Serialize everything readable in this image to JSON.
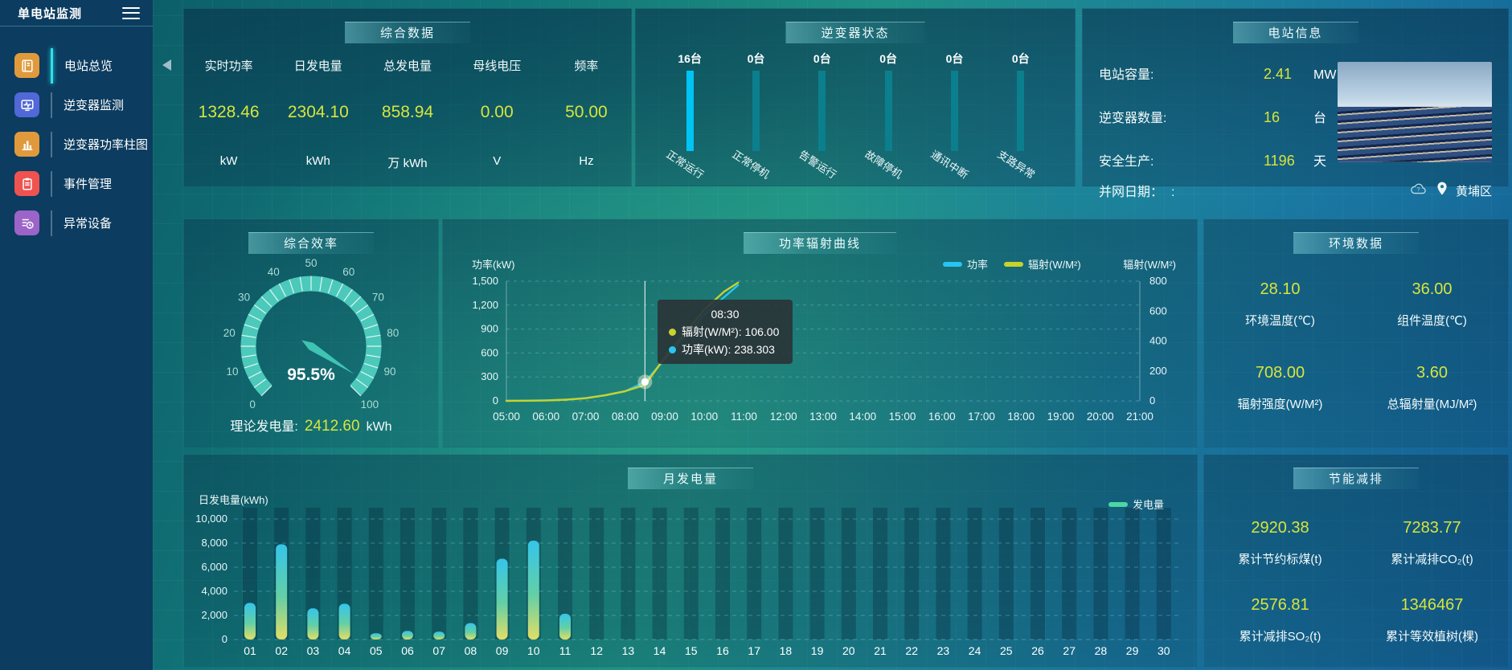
{
  "app": {
    "title": "单电站监测"
  },
  "sidebar": {
    "items": [
      {
        "label": "电站总览",
        "icon": "overview-icon",
        "color": "#e09a3c",
        "active": true
      },
      {
        "label": "逆变器监测",
        "icon": "inverter-monitor-icon",
        "color": "#5168d8",
        "active": false
      },
      {
        "label": "逆变器功率柱图",
        "icon": "inverter-power-bars-icon",
        "color": "#e09a3c",
        "active": false
      },
      {
        "label": "事件管理",
        "icon": "event-management-icon",
        "color": "#ef5350",
        "active": false
      },
      {
        "label": "异常设备",
        "icon": "abnormal-devices-icon",
        "color": "#9c64c8",
        "active": false
      }
    ]
  },
  "summary": {
    "title": "综合数据",
    "metrics": [
      {
        "label": "实时功率",
        "value": "1328.46",
        "unit": "kW"
      },
      {
        "label": "日发电量",
        "value": "2304.10",
        "unit": "kWh"
      },
      {
        "label": "总发电量",
        "value": "858.94",
        "unit": "万 kWh"
      },
      {
        "label": "母线电压",
        "value": "0.00",
        "unit": "V"
      },
      {
        "label": "频率",
        "value": "50.00",
        "unit": "Hz"
      }
    ]
  },
  "inverter_status": {
    "title": "逆变器状态"
  },
  "station_info": {
    "title": "电站信息",
    "rows": [
      {
        "label": "电站容量:",
        "value": "2.41",
        "unit": "MW"
      },
      {
        "label": "逆变器数量:",
        "value": "16",
        "unit": "台"
      },
      {
        "label": "安全生产:",
        "value": "1196",
        "unit": "天"
      },
      {
        "label": "并网日期：",
        "value": ":",
        "unit": ""
      }
    ],
    "location": "黄埔区"
  },
  "efficiency": {
    "title": "综合效率",
    "footer": {
      "label": "理论发电量:",
      "value": "2412.60",
      "unit": "kWh"
    }
  },
  "power_radiation": {
    "title": "功率辐射曲线"
  },
  "environment": {
    "title": "环境数据",
    "metrics": [
      {
        "value": "28.10",
        "label": "环境温度(℃)"
      },
      {
        "value": "36.00",
        "label": "组件温度(℃)"
      },
      {
        "value": "708.00",
        "label": "辐射强度(W/M²)"
      },
      {
        "value": "3.60",
        "label": "总辐射量(MJ/M²)"
      }
    ]
  },
  "monthly": {
    "title": "月发电量"
  },
  "saving": {
    "title": "节能减排",
    "metrics": [
      {
        "value": "2920.38",
        "label": "累计节约标煤(t)"
      },
      {
        "value": "7283.77",
        "label": "累计减排CO₂(t)"
      },
      {
        "value": "2576.81",
        "label": "累计减排SO₂(t)"
      },
      {
        "value": "1346467",
        "label": "累计等效植树(棵)"
      }
    ]
  },
  "colors": {
    "value_accent": "#d7e53c",
    "power_line": "#29c5f2",
    "radiation_line": "#c8d22c",
    "gauge_arc": "#4cc9ba",
    "inverter_active": "#00c4f4",
    "inverter_inactive": "#0b7f8d",
    "generation_legend": "#4cd6a2"
  },
  "chart_data": [
    {
      "id": "power-radiation",
      "type": "line",
      "title": "功率辐射曲线",
      "x_range": [
        5,
        21
      ],
      "x_ticks": [
        "05:00",
        "06:00",
        "07:00",
        "08:00",
        "09:00",
        "10:00",
        "11:00",
        "12:00",
        "13:00",
        "14:00",
        "15:00",
        "16:00",
        "17:00",
        "18:00",
        "19:00",
        "20:00",
        "21:00"
      ],
      "left_axis": {
        "label": "功率(kW)",
        "ticks": [
          0,
          300,
          600,
          900,
          1200,
          1500
        ],
        "max": 1500
      },
      "right_axis": {
        "label": "辐射(W/M²)",
        "ticks": [
          0,
          200,
          400,
          600,
          800
        ],
        "max": 800
      },
      "legend": [
        "功率",
        "辐射(W/M²)"
      ],
      "grid": true,
      "series": [
        {
          "name": "功率",
          "axis": "left",
          "color": "#29c5f2",
          "x": [
            5,
            5.5,
            6,
            6.5,
            7,
            7.5,
            8,
            8.5,
            9,
            9.5,
            10,
            10.5,
            10.85
          ],
          "y": [
            2,
            3,
            6,
            14,
            35,
            70,
            120,
            238.3,
            520,
            800,
            1080,
            1300,
            1450
          ]
        },
        {
          "name": "辐射(W/M²)",
          "axis": "right",
          "color": "#c8d22c",
          "x": [
            5,
            5.5,
            6,
            6.5,
            7,
            7.5,
            8,
            8.5,
            9,
            9.5,
            10,
            10.5,
            10.85
          ],
          "y": [
            0,
            1,
            3,
            8,
            18,
            38,
            65,
            106,
            290,
            450,
            610,
            730,
            790
          ]
        }
      ],
      "tooltip": {
        "title": "08:30",
        "x": 8.5,
        "marker_power": 238.3,
        "rows": [
          {
            "text": "辐射(W/M²): 106.00",
            "color": "#c8d22c"
          },
          {
            "text": "功率(kW): 238.303",
            "color": "#29c5f2"
          }
        ]
      }
    },
    {
      "id": "monthly-generation",
      "type": "bar",
      "title": "月发电量",
      "ylabel": "日发电量(kWh)",
      "legend": "发电量",
      "legend_color": "#4cd6a2",
      "categories": [
        "01",
        "02",
        "03",
        "04",
        "05",
        "06",
        "07",
        "08",
        "09",
        "10",
        "11",
        "12",
        "13",
        "14",
        "15",
        "16",
        "17",
        "18",
        "19",
        "20",
        "21",
        "22",
        "23",
        "24",
        "25",
        "26",
        "27",
        "28",
        "29",
        "30"
      ],
      "values": [
        3030,
        7900,
        2580,
        2970,
        520,
        710,
        650,
        1360,
        6700,
        8200,
        2130,
        0,
        0,
        0,
        0,
        0,
        0,
        0,
        0,
        0,
        0,
        0,
        0,
        0,
        0,
        0,
        0,
        0,
        0,
        0
      ],
      "y_ticks": [
        0,
        2000,
        4000,
        6000,
        8000,
        10000
      ],
      "ymax": 10000
    },
    {
      "id": "efficiency-gauge",
      "type": "gauge",
      "min": 0,
      "max": 100,
      "value": 95.5,
      "display": "95.5%",
      "major_tick": 10
    },
    {
      "id": "inverter-status",
      "type": "bar",
      "categories": [
        "正常运行",
        "正常停机",
        "告警运行",
        "故障停机",
        "通讯中断",
        "支路异常"
      ],
      "values": [
        16,
        0,
        0,
        0,
        0,
        0
      ],
      "counts": [
        "16台",
        "0台",
        "0台",
        "0台",
        "0台",
        "0台"
      ],
      "active_color": "#00c4f4",
      "inactive_color": "#0b7f8d"
    }
  ]
}
